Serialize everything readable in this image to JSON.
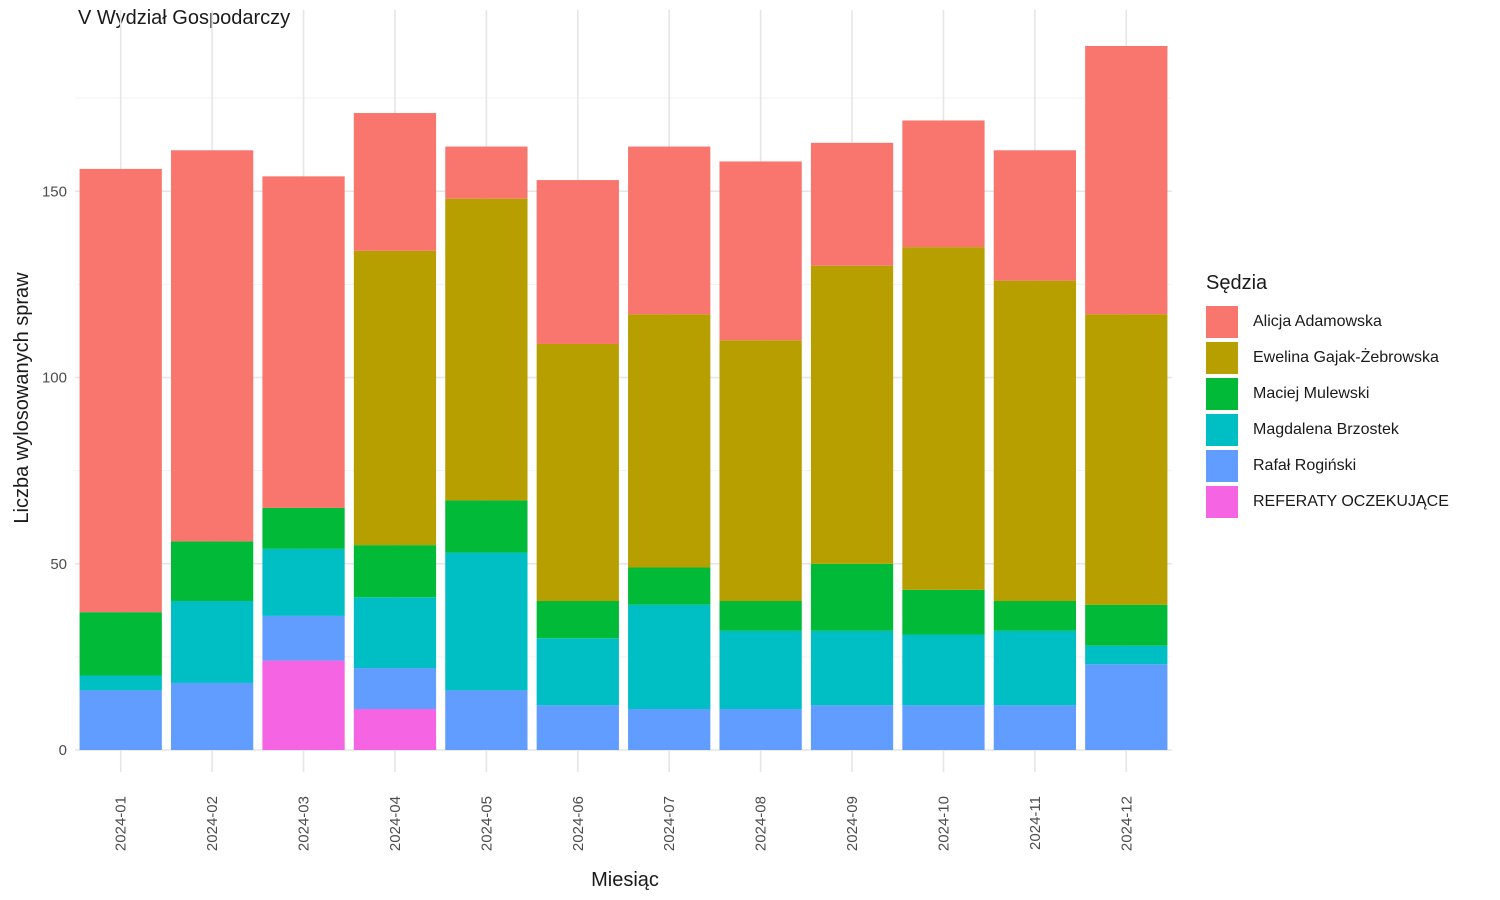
{
  "chart_data": {
    "type": "bar",
    "stacked": true,
    "title": "V Wydział Gospodarczy",
    "xlabel": "Miesiąc",
    "ylabel": "Liczba wylosowanych spraw",
    "ylim": [
      0,
      190
    ],
    "yticks": [
      "0",
      "50",
      "100",
      "150"
    ],
    "grid": true,
    "legend_title": "Sędzia",
    "legend_position": "right",
    "categories": [
      "2024-01",
      "2024-02",
      "2024-03",
      "2024-04",
      "2024-05",
      "2024-06",
      "2024-07",
      "2024-08",
      "2024-09",
      "2024-10",
      "2024-11",
      "2024-12"
    ],
    "series": [
      {
        "name": "Alicja Adamowska",
        "color": "#F8766D",
        "values": [
          119,
          105,
          89,
          37,
          14,
          44,
          45,
          48,
          33,
          34,
          35,
          72
        ]
      },
      {
        "name": "Ewelina Gajak-Żebrowska",
        "color": "#B79F00",
        "values": [
          0,
          0,
          0,
          79,
          81,
          69,
          68,
          70,
          80,
          92,
          86,
          78
        ]
      },
      {
        "name": "Maciej Mulewski",
        "color": "#00BA38",
        "values": [
          17,
          16,
          11,
          14,
          14,
          10,
          10,
          8,
          18,
          12,
          8,
          11
        ]
      },
      {
        "name": "Magdalena Brzostek",
        "color": "#00BFC4",
        "values": [
          4,
          22,
          18,
          19,
          37,
          18,
          28,
          21,
          20,
          19,
          20,
          5
        ]
      },
      {
        "name": "Rafał Rogiński",
        "color": "#619CFF",
        "values": [
          16,
          18,
          12,
          11,
          16,
          12,
          11,
          11,
          12,
          12,
          12,
          23
        ]
      },
      {
        "name": "REFERATY OCZEKUJĄCE",
        "color": "#F564E3",
        "values": [
          0,
          0,
          24,
          11,
          0,
          0,
          0,
          0,
          0,
          0,
          0,
          0
        ]
      }
    ]
  }
}
